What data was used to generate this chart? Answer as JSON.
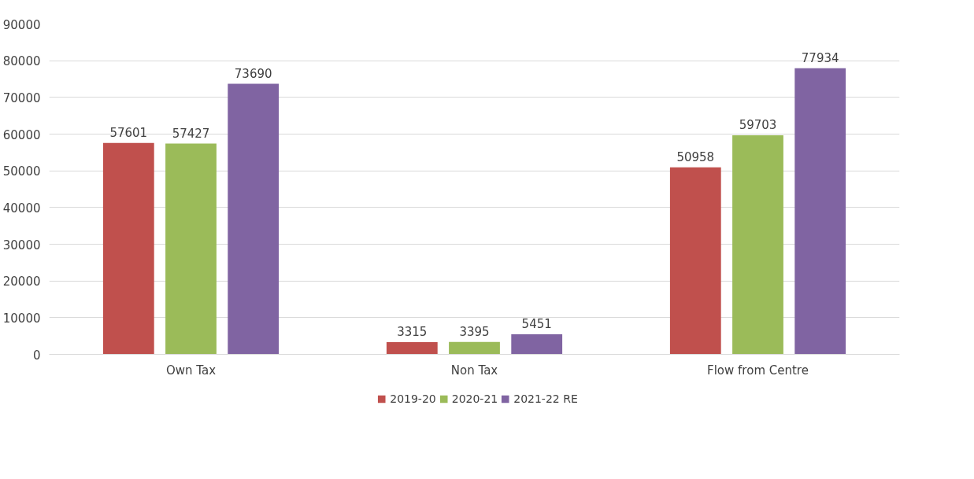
{
  "chart_data": {
    "type": "bar",
    "categories": [
      "Own Tax",
      "Non Tax",
      "Flow from Centre"
    ],
    "series": [
      {
        "name": "2019-20",
        "color": "#c0504d",
        "values": [
          57601,
          3315,
          50958
        ]
      },
      {
        "name": "2020-21",
        "color": "#9bbb59",
        "values": [
          57427,
          3395,
          59703
        ]
      },
      {
        "name": "2021-22 RE",
        "color": "#8064a2",
        "values": [
          73690,
          5451,
          77934
        ]
      }
    ],
    "ylim": [
      0,
      90000
    ],
    "yticks": [
      0,
      10000,
      20000,
      30000,
      40000,
      50000,
      60000,
      70000,
      80000,
      90000
    ],
    "grid": "y",
    "legend": "bottom",
    "data_labels": true
  }
}
